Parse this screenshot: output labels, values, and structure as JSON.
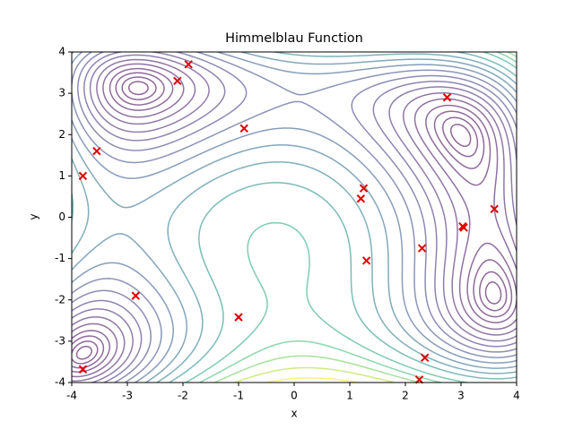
{
  "chart_data": {
    "type": "contour",
    "title": "Himmelblau Function",
    "x_label": "x",
    "y_label": "y",
    "xlim": [
      -4,
      4
    ],
    "ylim": [
      -4,
      4
    ],
    "xticks": [
      -4,
      -3,
      -2,
      -1,
      0,
      1,
      2,
      3,
      4
    ],
    "yticks": [
      -4,
      -3,
      -2,
      -1,
      0,
      1,
      2,
      3,
      4
    ],
    "levels": [
      1,
      3,
      6,
      10,
      16,
      23,
      32,
      42,
      54,
      68,
      84,
      102,
      122,
      145,
      175,
      200,
      225,
      255,
      290
    ],
    "colormap": [
      "#440154",
      "#482878",
      "#3e4989",
      "#31688e",
      "#26828e",
      "#1f9e89",
      "#35b779",
      "#6ece58",
      "#b5de2b",
      "#fde725"
    ],
    "line_alpha": 0.6,
    "series": [
      {
        "type": "scatter",
        "marker": "x",
        "color": "#e00000",
        "x": [
          -2.1,
          -1.9,
          -0.9,
          -3.55,
          -3.8,
          1.25,
          1.2,
          2.75,
          3.6,
          3.05,
          3.03,
          2.3,
          1.3,
          -2.85,
          -1.0,
          -3.8,
          2.35,
          2.25
        ],
        "y": [
          3.3,
          3.7,
          2.15,
          1.6,
          1.0,
          0.7,
          0.45,
          2.9,
          0.2,
          -0.25,
          -0.22,
          -0.75,
          -1.05,
          -1.9,
          -2.42,
          -3.68,
          -3.4,
          -3.93
        ]
      }
    ]
  }
}
